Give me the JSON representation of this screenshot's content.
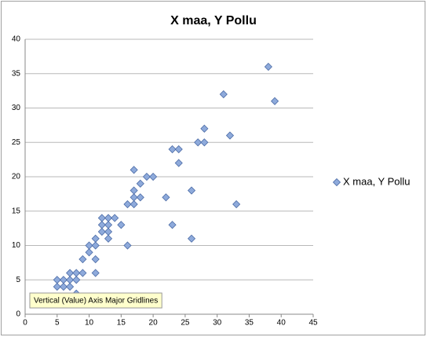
{
  "chart_data": {
    "type": "scatter",
    "title": "X maa, Y Pollu",
    "series": [
      {
        "name": "X maa, Y Pollu",
        "color": "#8eaadb",
        "edge_color": "#4a6aa5",
        "x": [
          5,
          5,
          6,
          6,
          7,
          7,
          7,
          8,
          8,
          8,
          9,
          9,
          10,
          10,
          11,
          11,
          11,
          11,
          12,
          12,
          12,
          13,
          13,
          13,
          13,
          14,
          15,
          16,
          16,
          17,
          17,
          17,
          17,
          18,
          18,
          19,
          20,
          22,
          23,
          23,
          24,
          24,
          26,
          26,
          27,
          28,
          28,
          31,
          32,
          33,
          38,
          39
        ],
        "values": [
          5,
          4,
          5,
          4,
          6,
          5,
          4,
          6,
          5,
          3,
          6,
          8,
          9,
          10,
          10,
          11,
          8,
          6,
          14,
          13,
          12,
          14,
          13,
          12,
          11,
          14,
          13,
          10,
          16,
          16,
          17,
          18,
          21,
          17,
          19,
          20,
          20,
          17,
          24,
          13,
          24,
          22,
          18,
          11,
          25,
          25,
          27,
          32,
          26,
          16,
          36,
          31
        ]
      }
    ],
    "xlim": [
      0,
      45
    ],
    "xticks": [
      0,
      5,
      10,
      15,
      20,
      25,
      30,
      35,
      40,
      45
    ],
    "ylim": [
      0,
      40
    ],
    "yticks": [
      0,
      5,
      10,
      15,
      20,
      25,
      30,
      35,
      40
    ],
    "grid": true,
    "legend": "right",
    "tooltip": "Vertical (Value) Axis Major Gridlines"
  }
}
